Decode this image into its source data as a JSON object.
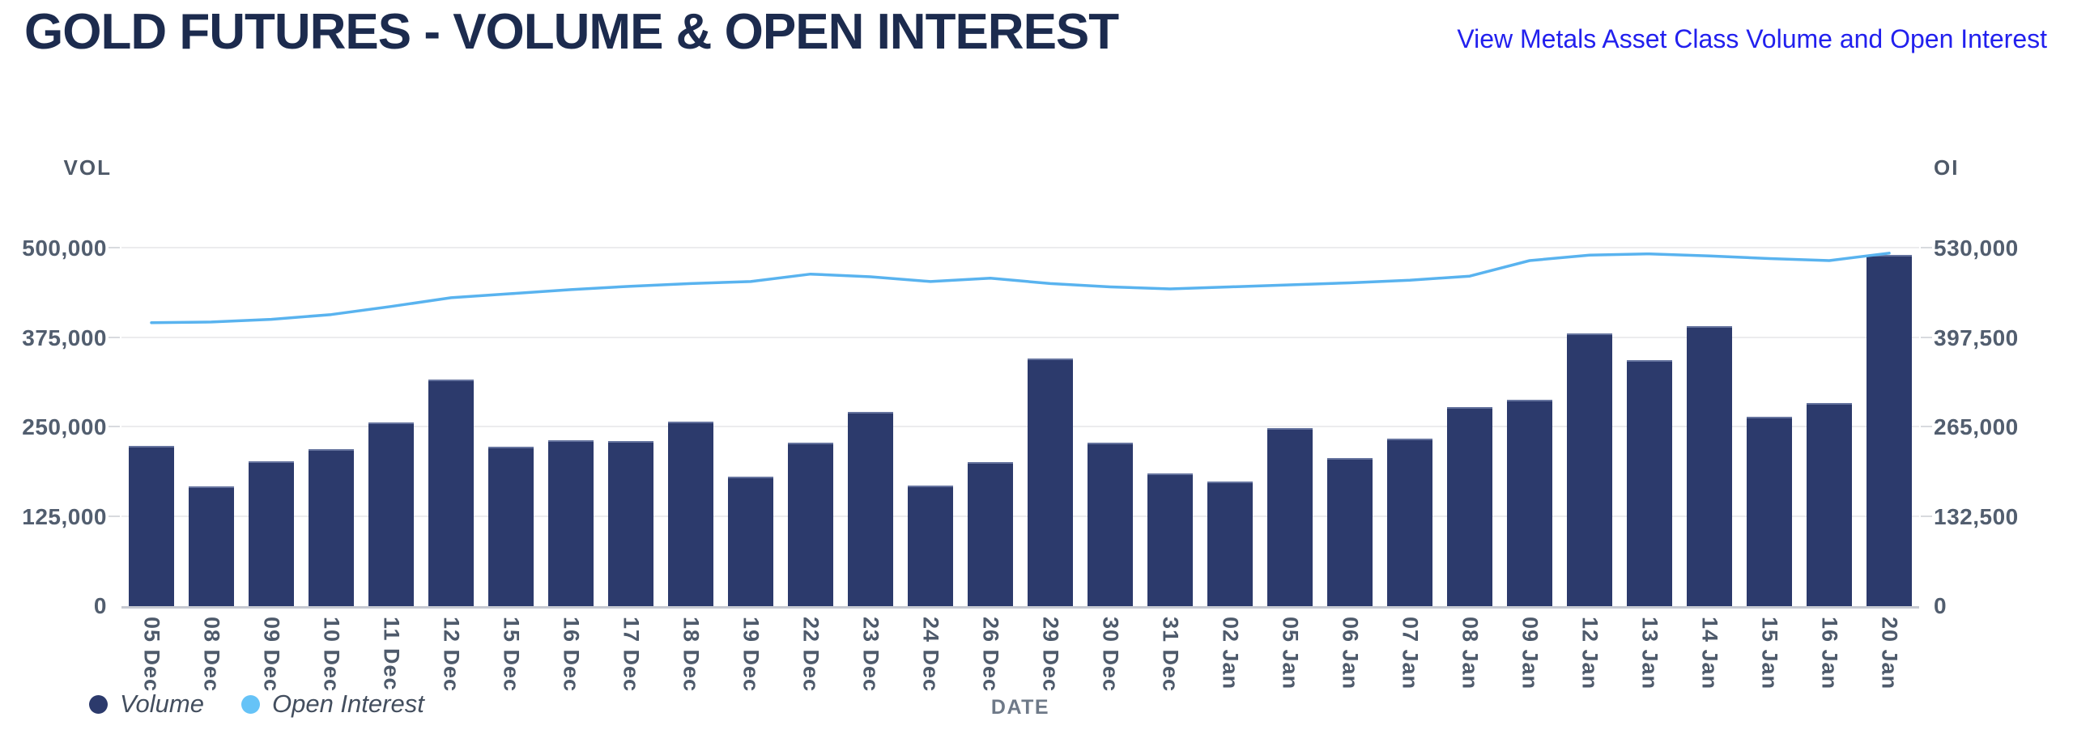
{
  "header": {
    "title": "GOLD FUTURES - VOLUME & OPEN INTEREST",
    "link": "View Metals Asset Class Volume and Open Interest"
  },
  "chart": {
    "left_axis_title": "VOL",
    "right_axis_title": "OI",
    "x_axis_title": "DATE",
    "legend": [
      {
        "label": "Volume",
        "color": "#2c3a6c"
      },
      {
        "label": "Open Interest",
        "color": "#66c3f7"
      }
    ]
  },
  "colors": {
    "bar": "#2c3a6c",
    "line": "#59b3ef",
    "title": "#1c2b4e",
    "link": "#2220ee",
    "gridline": "#ececee",
    "axis_text": "#525e6f"
  },
  "chart_data": {
    "type": "bar",
    "title": "GOLD FUTURES - VOLUME & OPEN INTEREST",
    "xlabel": "DATE",
    "grid": true,
    "legend_position": "bottom-left",
    "categories": [
      "05 Dec",
      "08 Dec",
      "09 Dec",
      "10 Dec",
      "11 Dec",
      "12 Dec",
      "15 Dec",
      "16 Dec",
      "17 Dec",
      "18 Dec",
      "19 Dec",
      "22 Dec",
      "23 Dec",
      "24 Dec",
      "26 Dec",
      "29 Dec",
      "30 Dec",
      "31 Dec",
      "02 Jan",
      "05 Jan",
      "06 Jan",
      "07 Jan",
      "08 Jan",
      "09 Jan",
      "12 Jan",
      "13 Jan",
      "14 Jan",
      "15 Jan",
      "16 Jan",
      "20 Jan"
    ],
    "series": [
      {
        "name": "Volume",
        "type": "bar",
        "axis": "left",
        "color": "#2c3a6c",
        "values": [
          224000,
          168000,
          202000,
          219000,
          257000,
          317000,
          223000,
          232000,
          231000,
          258000,
          181000,
          229000,
          272000,
          169000,
          201000,
          346000,
          228000,
          186000,
          174000,
          249000,
          207000,
          234000,
          278000,
          288000,
          381000,
          344000,
          391000,
          265000,
          284000,
          491000
        ]
      },
      {
        "name": "Open Interest",
        "type": "line",
        "axis": "right",
        "color": "#59b3ef",
        "values": [
          420000,
          421000,
          425000,
          432000,
          444000,
          457000,
          463000,
          469000,
          474000,
          478000,
          481000,
          492000,
          488000,
          481000,
          486000,
          478000,
          473000,
          470000,
          473000,
          476000,
          479000,
          483000,
          489000,
          512000,
          520000,
          522000,
          519000,
          515000,
          512000,
          523000
        ]
      }
    ],
    "left_axis": {
      "title": "VOL",
      "min": 0,
      "max": 500000,
      "ticks": [
        0,
        125000,
        250000,
        375000,
        500000
      ]
    },
    "right_axis": {
      "title": "OI",
      "min": 0,
      "max": 530000,
      "ticks": [
        0,
        132500,
        265000,
        397500,
        530000
      ]
    }
  }
}
